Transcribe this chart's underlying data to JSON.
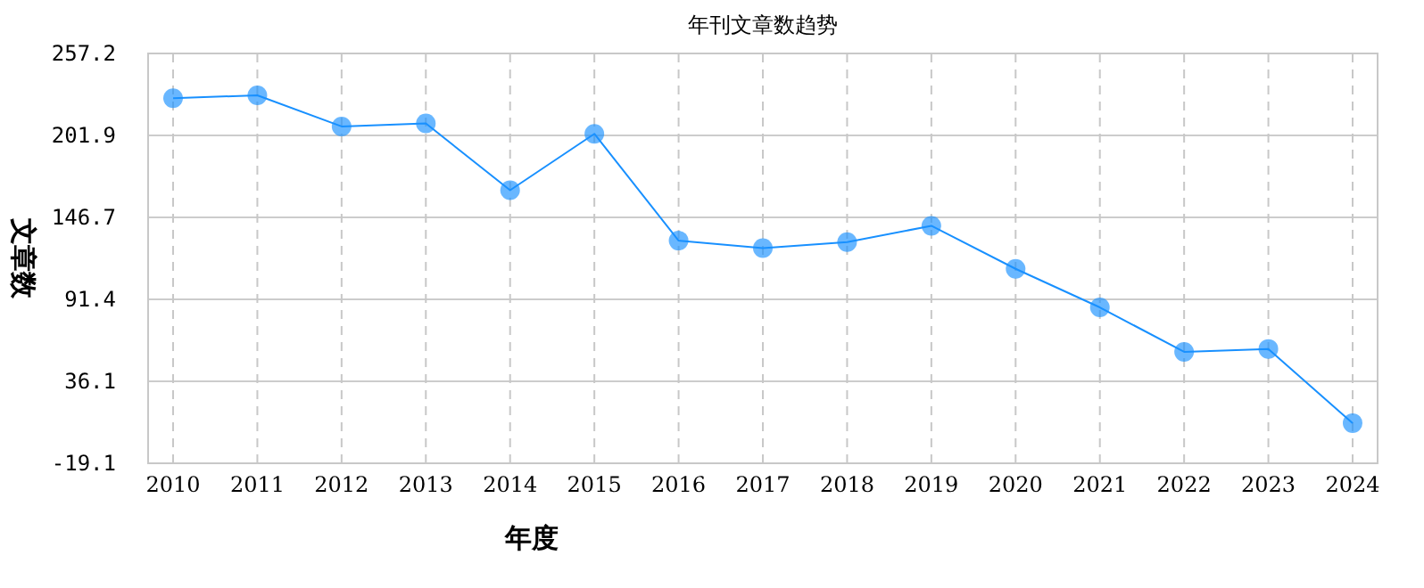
{
  "chart_data": {
    "type": "line",
    "title": "年刊文章数趋势",
    "xlabel": "年度",
    "ylabel": "文章数",
    "categories": [
      "2010",
      "2011",
      "2012",
      "2013",
      "2014",
      "2015",
      "2016",
      "2017",
      "2018",
      "2019",
      "2020",
      "2021",
      "2022",
      "2023",
      "2024"
    ],
    "series": [
      {
        "color": "#1890ff",
        "values": [
          227,
          229,
          208,
          210,
          165,
          203,
          131,
          126,
          130,
          141,
          112,
          86,
          56,
          58,
          8
        ]
      }
    ],
    "ylim": [
      -19.1,
      257.2
    ],
    "yticks": [
      -19.1,
      36.1,
      91.4,
      146.7,
      201.9,
      257.2
    ],
    "grid": true,
    "marker": "circle",
    "line_style": "solid"
  }
}
